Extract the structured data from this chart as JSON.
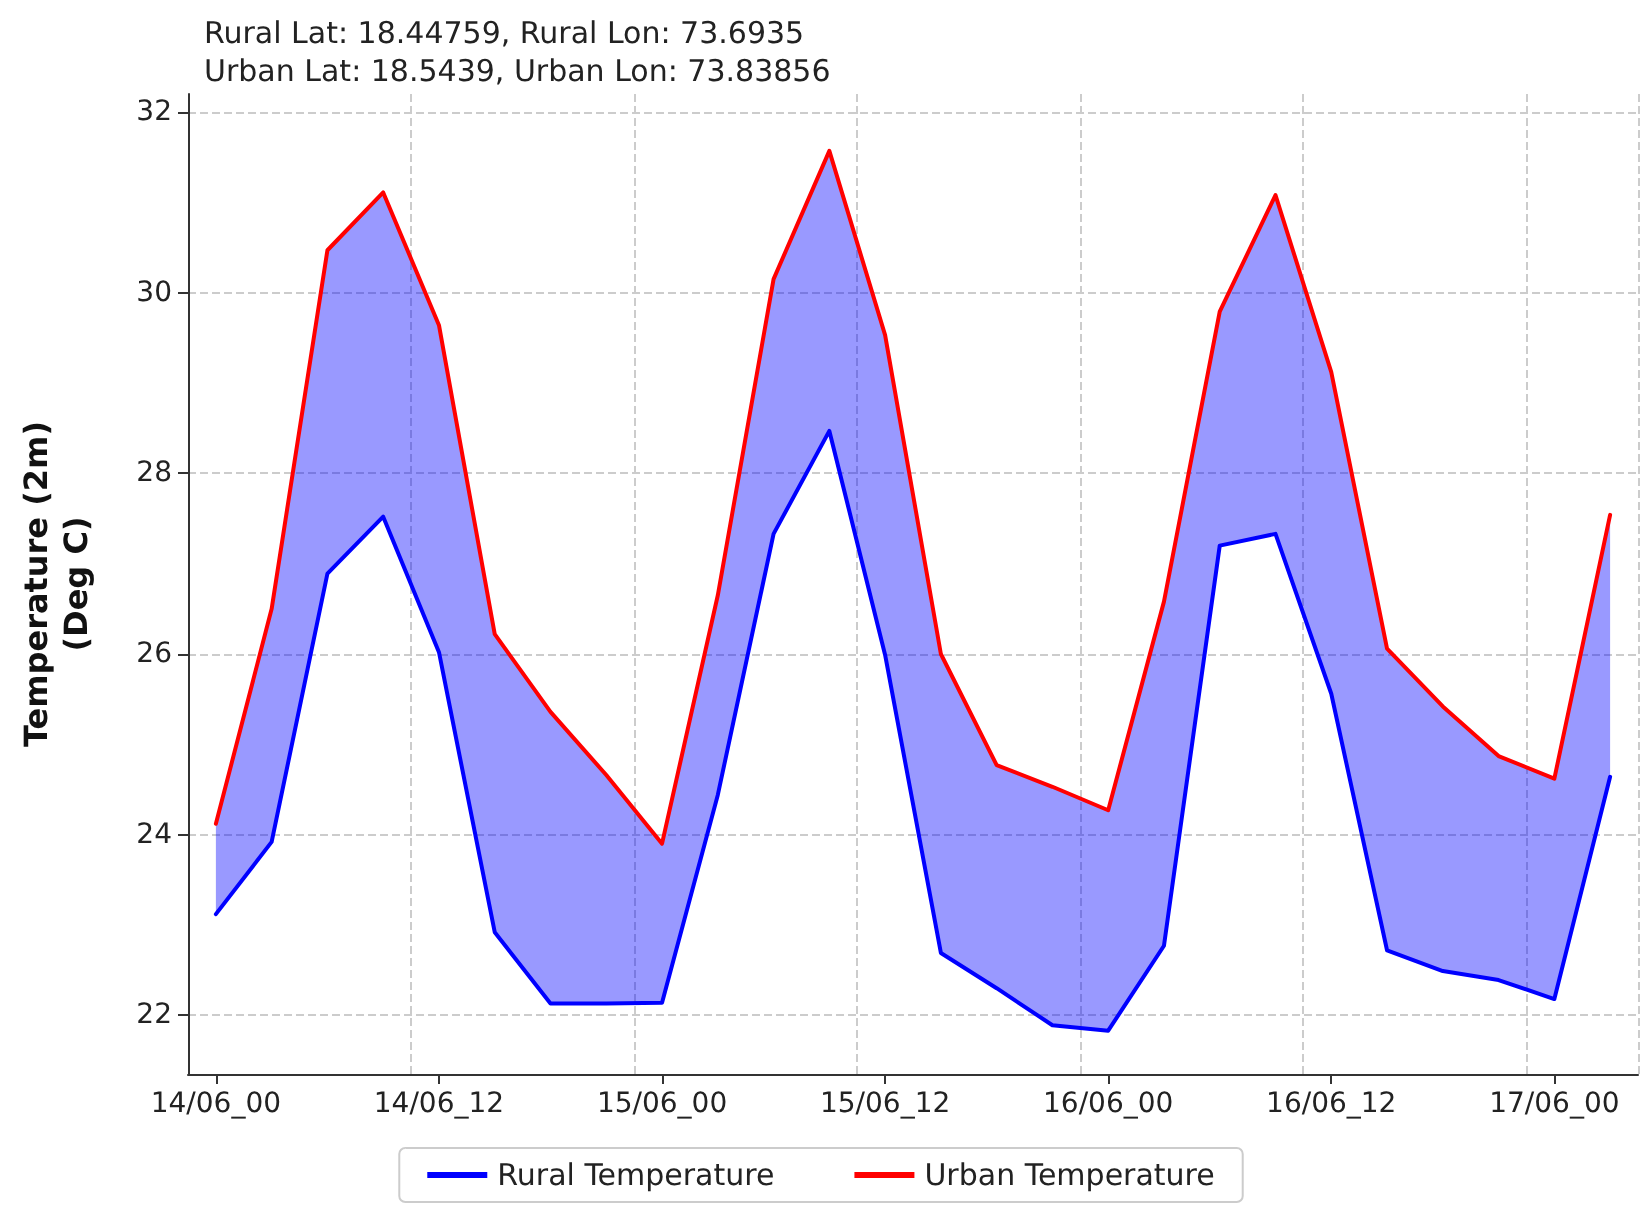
{
  "chart_data": {
    "type": "line",
    "title": "Rural Lat: 18.44759, Rural Lon: 73.6935\nUrban Lat: 18.5439, Urban Lon: 73.83856",
    "ylabel": "Temperature (2m)\n(Deg C)",
    "categories": [
      "14/06_00",
      null,
      null,
      null,
      "14/06_12",
      null,
      null,
      null,
      "15/06_00",
      null,
      null,
      null,
      "15/06_12",
      null,
      null,
      null,
      "16/06_00",
      null,
      null,
      null,
      "16/06_12",
      null,
      null,
      null,
      "17/06_00",
      null
    ],
    "series": [
      {
        "name": "Rural Temperature",
        "color": "#0000ff",
        "values": [
          23.12,
          23.92,
          26.89,
          27.52,
          26.02,
          22.92,
          22.13,
          22.13,
          22.14,
          24.44,
          27.33,
          28.47,
          25.99,
          22.69,
          22.3,
          21.89,
          21.83,
          22.77,
          27.2,
          27.33,
          25.56,
          22.72,
          22.49,
          22.39,
          22.18,
          24.64
        ],
        "lower": [
          23.12,
          23.92,
          26.89,
          27.52,
          26.02,
          22.92,
          22.13,
          22.13,
          22.14,
          24.44,
          27.33,
          28.47,
          25.99,
          22.69,
          22.3,
          21.89,
          21.83,
          22.77,
          27.2,
          27.33,
          25.56,
          22.72,
          22.49,
          22.39,
          22.18,
          24.64
        ],
        "upper": [
          24.12,
          26.5,
          30.47,
          31.11,
          29.64,
          26.22,
          25.36,
          24.66,
          23.9,
          26.65,
          30.15,
          31.57,
          29.53,
          26.0,
          24.77,
          24.53,
          24.27,
          26.58,
          29.79,
          31.08,
          29.12,
          26.06,
          25.42,
          24.87,
          24.62,
          27.54
        ]
      },
      {
        "name": "Urban Temperature",
        "color": "#ff0000",
        "values": [
          24.12,
          26.5,
          30.47,
          31.11,
          29.64,
          26.22,
          25.36,
          24.66,
          23.9,
          26.65,
          30.15,
          31.57,
          29.53,
          26.0,
          24.77,
          24.53,
          24.27,
          26.58,
          29.79,
          31.08,
          29.12,
          26.06,
          25.42,
          24.87,
          24.62,
          27.54
        ]
      }
    ],
    "ylim": [
      21.35,
      32.2
    ],
    "yticks": [
      22,
      24,
      26,
      28,
      30,
      32
    ],
    "grid": true,
    "legend": "bottom",
    "marker": "none",
    "line_style": "solid"
  }
}
